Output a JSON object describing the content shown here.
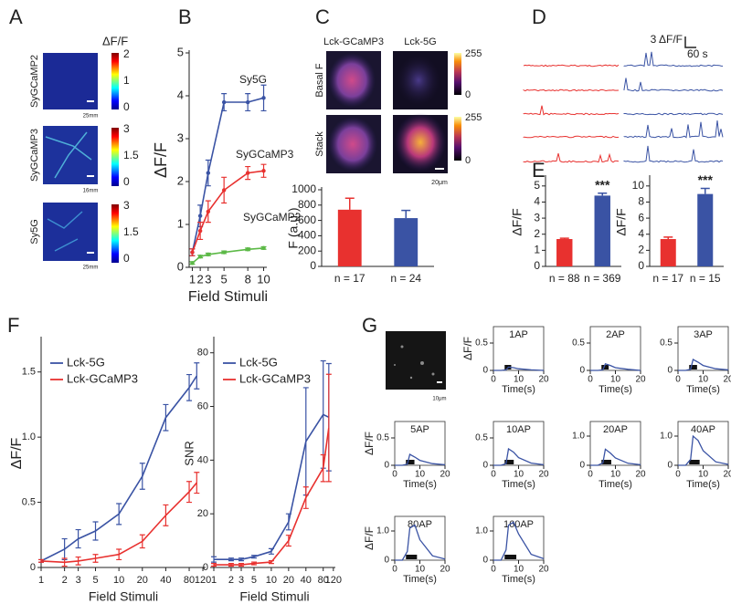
{
  "panel_labels": [
    "A",
    "B",
    "C",
    "D",
    "E",
    "F",
    "G"
  ],
  "panel_a": {
    "colorbar_title": "ΔF/F",
    "images": [
      {
        "label": "SyGCaMP2",
        "scale_bar": "25mm",
        "colorbar_ticks": [
          2,
          1,
          0
        ]
      },
      {
        "label": "SyGCaMP3",
        "scale_bar": "16mm",
        "colorbar_ticks": [
          3,
          1.5,
          0
        ]
      },
      {
        "label": "Sy5G",
        "scale_bar": "25mm",
        "colorbar_ticks": [
          3,
          1.5,
          0
        ]
      }
    ]
  },
  "panel_c": {
    "columns": [
      "Lck-GCaMP3",
      "Lck-5G"
    ],
    "rows": [
      "Basal F",
      "Stack"
    ],
    "colorbar_ticks": [
      255,
      0
    ],
    "scale_bar": "20μm"
  },
  "panel_d": {
    "scale_y": "3 ΔF/F",
    "scale_x": "60 s"
  },
  "panel_g": {
    "scale_bar": "10μm"
  },
  "chart_data": [
    {
      "type": "line",
      "x": [
        1,
        2,
        3,
        5,
        8,
        10
      ],
      "xlim": [
        0.6,
        10.4
      ],
      "ylim": [
        0,
        5
      ],
      "xticks": [
        1,
        2,
        3,
        5,
        8,
        10
      ],
      "yticks": [
        0,
        1,
        2,
        3,
        4,
        5
      ],
      "xlabel": "Field Stimuli",
      "ylabel": "ΔF/F",
      "markers": true,
      "series": [
        {
          "name": "Sy5G",
          "color": "#3a53a4",
          "values": [
            0.35,
            1.2,
            2.2,
            3.85,
            3.85,
            3.95
          ],
          "errors": [
            0.08,
            0.25,
            0.3,
            0.2,
            0.2,
            0.3
          ]
        },
        {
          "name": "SyGCaMP3",
          "color": "#e8312f",
          "values": [
            0.35,
            0.85,
            1.3,
            1.8,
            2.2,
            2.25
          ],
          "errors": [
            0.08,
            0.2,
            0.25,
            0.3,
            0.15,
            0.15
          ]
        },
        {
          "name": "SyGCaMP2",
          "color": "#5cb947",
          "values": [
            0.1,
            0.25,
            0.3,
            0.35,
            0.42,
            0.45
          ],
          "errors": [
            0.03,
            0.03,
            0.03,
            0.03,
            0.03,
            0.03
          ]
        }
      ]
    },
    {
      "type": "bar",
      "categories": [
        "n = 17",
        "n = 24"
      ],
      "values": [
        740,
        630
      ],
      "errors": [
        150,
        100
      ],
      "colors": [
        "#e8312f",
        "#3a53a4"
      ],
      "ylim": [
        0,
        1000
      ],
      "yticks": [
        0,
        200,
        400,
        600,
        800,
        1000
      ],
      "ylabel": "F (a.u.)"
    },
    {
      "type": "bar",
      "categories": [
        "n = 88",
        "n = 369"
      ],
      "values": [
        1.7,
        4.4
      ],
      "errors": [
        0.05,
        0.15
      ],
      "colors": [
        "#e8312f",
        "#3a53a4"
      ],
      "ylim": [
        0,
        5.5
      ],
      "yticks": [
        0,
        1,
        2,
        3,
        4,
        5
      ],
      "ylabel": "ΔF/F",
      "annotation": "***"
    },
    {
      "type": "bar",
      "categories": [
        "n = 17",
        "n = 15"
      ],
      "values": [
        3.4,
        9.0
      ],
      "errors": [
        0.25,
        0.7
      ],
      "colors": [
        "#e8312f",
        "#3a53a4"
      ],
      "ylim": [
        0,
        11
      ],
      "yticks": [
        0,
        2,
        4,
        6,
        8,
        10
      ],
      "ylabel": "ΔF/F",
      "annotation": "***"
    },
    {
      "type": "line",
      "log_x": true,
      "x": [
        1,
        2,
        3,
        5,
        10,
        20,
        40,
        80,
        100
      ],
      "xlim": [
        1,
        130
      ],
      "xticks": [
        1,
        2,
        3,
        5,
        10,
        20,
        40,
        80,
        120
      ],
      "ylim": [
        0,
        1.75
      ],
      "yticks": [
        0,
        0.5,
        {
          "value": 1,
          "label": "1.0"
        },
        1.5
      ],
      "xlabel": "Field Stimuli",
      "ylabel": "ΔF/F",
      "legend": "top-left",
      "series": [
        {
          "name": "Lck-5G",
          "color": "#3a53a4",
          "values": [
            0.05,
            0.14,
            0.22,
            0.28,
            0.41,
            0.7,
            1.15,
            1.38,
            1.47
          ],
          "errors": [
            0.01,
            0.08,
            0.07,
            0.07,
            0.08,
            0.1,
            0.1,
            0.1,
            0.1
          ]
        },
        {
          "name": "Lck-GCaMP3",
          "color": "#e8312f",
          "values": [
            0.05,
            0.04,
            0.05,
            0.07,
            0.1,
            0.2,
            0.4,
            0.58,
            0.65
          ],
          "errors": [
            0.01,
            0.03,
            0.03,
            0.03,
            0.04,
            0.05,
            0.08,
            0.08,
            0.08
          ]
        }
      ]
    },
    {
      "type": "line",
      "log_x": true,
      "x": [
        1,
        2,
        3,
        5,
        10,
        20,
        40,
        80,
        100
      ],
      "xlim": [
        1,
        130
      ],
      "xticks": [
        1,
        2,
        3,
        5,
        10,
        20,
        40,
        80,
        120
      ],
      "ylim": [
        0,
        85
      ],
      "yticks": [
        0,
        20,
        40,
        60,
        80
      ],
      "xlabel": "Field Stimuli",
      "ylabel": "SNR",
      "legend": "top-left",
      "series": [
        {
          "name": "Lck-5G",
          "color": "#3a53a4",
          "values": [
            3,
            3,
            3,
            4,
            6,
            17,
            47,
            57,
            56
          ],
          "errors": [
            1,
            0.5,
            0.5,
            0.5,
            1,
            3,
            20,
            20,
            20
          ]
        },
        {
          "name": "Lck-GCaMP3",
          "color": "#e8312f",
          "values": [
            1,
            1,
            1,
            1.5,
            2,
            10,
            26,
            37,
            52
          ],
          "errors": [
            0.5,
            0.5,
            0.5,
            0.5,
            0.5,
            2,
            4,
            5,
            20
          ]
        }
      ]
    },
    {
      "type": "line",
      "title": "1AP",
      "x": [
        0,
        3,
        5,
        6,
        8,
        10,
        15,
        20
      ],
      "xlim": [
        0,
        20
      ],
      "xticks": [
        0,
        10,
        20
      ],
      "ylim": [
        0,
        0.8
      ],
      "yticks": [
        0,
        0.5
      ],
      "xlabel": "Time(s)",
      "ylabel": "ΔF/F",
      "series": [
        {
          "color": "#3a53a4",
          "values": [
            0,
            0,
            0.01,
            0.06,
            0.05,
            0.03,
            0.01,
            0
          ]
        }
      ]
    },
    {
      "type": "line",
      "title": "2AP",
      "x": [
        0,
        3,
        5,
        6,
        8,
        10,
        15,
        20
      ],
      "xlim": [
        0,
        20
      ],
      "xticks": [
        0,
        10,
        20
      ],
      "ylim": [
        0,
        0.8
      ],
      "yticks": [
        0,
        0.5
      ],
      "xlabel": "Time(s)",
      "series": [
        {
          "color": "#3a53a4",
          "values": [
            0,
            0,
            0.01,
            0.12,
            0.09,
            0.05,
            0.02,
            0
          ]
        }
      ]
    },
    {
      "type": "line",
      "title": "3AP",
      "x": [
        0,
        3,
        5,
        6,
        8,
        10,
        15,
        20
      ],
      "xlim": [
        0,
        20
      ],
      "xticks": [
        0,
        10,
        20
      ],
      "ylim": [
        0,
        0.8
      ],
      "yticks": [
        0,
        0.5
      ],
      "xlabel": "Time(s)",
      "series": [
        {
          "color": "#3a53a4",
          "values": [
            0,
            0,
            0.02,
            0.2,
            0.15,
            0.09,
            0.03,
            0.01
          ]
        }
      ]
    },
    {
      "type": "line",
      "title": "5AP",
      "x": [
        0,
        3,
        5,
        6,
        8,
        10,
        15,
        20
      ],
      "xlim": [
        0,
        20
      ],
      "xticks": [
        0,
        10,
        20
      ],
      "ylim": [
        0,
        0.8
      ],
      "yticks": [
        0,
        0.5
      ],
      "xlabel": "Time(s)",
      "ylabel": "ΔF/F",
      "series": [
        {
          "color": "#3a53a4",
          "values": [
            0,
            0,
            0.02,
            0.2,
            0.15,
            0.09,
            0.03,
            0.01
          ]
        }
      ]
    },
    {
      "type": "line",
      "title": "10AP",
      "x": [
        0,
        3,
        5,
        6,
        8,
        10,
        15,
        20
      ],
      "xlim": [
        0,
        20
      ],
      "xticks": [
        0,
        10,
        20
      ],
      "ylim": [
        0,
        0.8
      ],
      "yticks": [
        0,
        0.5
      ],
      "xlabel": "Time(s)",
      "series": [
        {
          "color": "#3a53a4",
          "values": [
            0,
            0,
            0.03,
            0.3,
            0.24,
            0.14,
            0.04,
            0.01
          ]
        }
      ]
    },
    {
      "type": "line",
      "title": "20AP",
      "x": [
        0,
        3,
        5,
        6,
        8,
        10,
        15,
        20
      ],
      "xlim": [
        0,
        20
      ],
      "xticks": [
        0,
        10,
        20
      ],
      "ylim": [
        0,
        1.5
      ],
      "yticks": [
        0,
        {
          "value": 1,
          "label": "1.0"
        }
      ],
      "xlabel": "Time(s)",
      "series": [
        {
          "color": "#3a53a4",
          "values": [
            0,
            0,
            0.08,
            0.55,
            0.42,
            0.25,
            0.07,
            0.02
          ]
        }
      ]
    },
    {
      "type": "line",
      "title": "40AP",
      "x": [
        0,
        3,
        5,
        6,
        8,
        10,
        15,
        20
      ],
      "xlim": [
        0,
        20
      ],
      "xticks": [
        0,
        10,
        20
      ],
      "ylim": [
        0,
        1.5
      ],
      "yticks": [
        0,
        {
          "value": 1,
          "label": "1.0"
        }
      ],
      "xlabel": "Time(s)",
      "series": [
        {
          "color": "#3a53a4",
          "values": [
            0,
            0,
            0.2,
            1.0,
            0.85,
            0.5,
            0.12,
            0.03
          ]
        }
      ]
    },
    {
      "type": "line",
      "title": "80AP",
      "x": [
        0,
        3,
        5,
        6,
        8,
        10,
        15,
        20
      ],
      "xlim": [
        0,
        20
      ],
      "xticks": [
        0,
        10,
        20
      ],
      "ylim": [
        0,
        1.5
      ],
      "yticks": [
        0,
        {
          "value": 1,
          "label": "1.0"
        }
      ],
      "xlabel": "Time(s)",
      "ylabel": "ΔF/F",
      "series": [
        {
          "color": "#3a53a4",
          "values": [
            0,
            0,
            0.3,
            1.1,
            1.2,
            0.7,
            0.15,
            0.04
          ]
        }
      ]
    },
    {
      "type": "line",
      "title": "160AP",
      "x": [
        0,
        3,
        5,
        6,
        8,
        10,
        15,
        20
      ],
      "xlim": [
        0,
        20
      ],
      "xticks": [
        0,
        10,
        20
      ],
      "ylim": [
        0,
        1.5
      ],
      "yticks": [
        0,
        {
          "value": 1,
          "label": "1.0"
        }
      ],
      "xlabel": "Time(s)",
      "series": [
        {
          "color": "#3a53a4",
          "values": [
            0,
            0,
            0.35,
            1.2,
            1.3,
            0.9,
            0.2,
            0.05
          ]
        }
      ]
    }
  ]
}
